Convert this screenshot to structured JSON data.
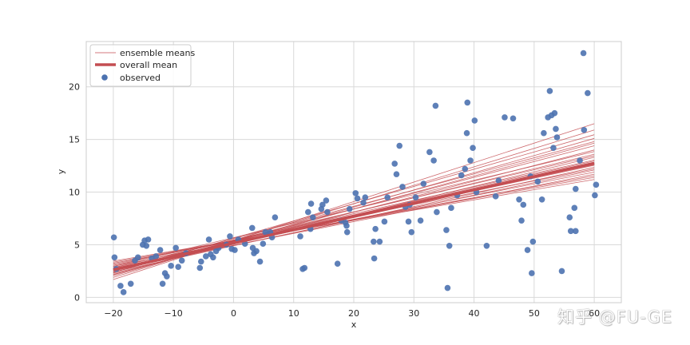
{
  "watermark": "知乎 @FU-GE",
  "chart_data": {
    "type": "scatter",
    "title": "",
    "xlabel": "x",
    "ylabel": "y",
    "xlim": [
      -24.5,
      64.5
    ],
    "ylim": [
      -0.5,
      24.3
    ],
    "xticks": [
      -20,
      -10,
      0,
      10,
      20,
      30,
      40,
      50,
      60
    ],
    "xtick_labels": [
      "−20",
      "−10",
      "0",
      "10",
      "20",
      "30",
      "40",
      "50",
      "60"
    ],
    "yticks": [
      0,
      5,
      10,
      15,
      20
    ],
    "ytick_labels": [
      "0",
      "5",
      "10",
      "15",
      "20"
    ],
    "grid": true,
    "legend": {
      "position": "top-left",
      "entries": [
        "ensemble means",
        "overall mean",
        "observed"
      ]
    },
    "colors": {
      "ensemble": "#c44e52",
      "mean": "#c44e52",
      "observed": "#4c72b0"
    },
    "observed": {
      "name": "observed",
      "points": [
        [
          -19.9,
          5.7
        ],
        [
          -19.8,
          3.8
        ],
        [
          -19.5,
          2.7
        ],
        [
          -18.8,
          1.1
        ],
        [
          -18.3,
          0.5
        ],
        [
          -17.1,
          1.3
        ],
        [
          -16.4,
          3.5
        ],
        [
          -15.9,
          3.8
        ],
        [
          -15.1,
          5.0
        ],
        [
          -14.8,
          5.4
        ],
        [
          -14.5,
          4.9
        ],
        [
          -14.2,
          5.5
        ],
        [
          -13.6,
          3.7
        ],
        [
          -12.9,
          3.9
        ],
        [
          -12.2,
          4.5
        ],
        [
          -11.8,
          1.3
        ],
        [
          -11.4,
          2.3
        ],
        [
          -11.1,
          2.0
        ],
        [
          -10.4,
          3.0
        ],
        [
          -9.6,
          4.7
        ],
        [
          -9.2,
          2.9
        ],
        [
          -8.6,
          3.5
        ],
        [
          -7.9,
          4.2
        ],
        [
          -5.6,
          2.8
        ],
        [
          -5.4,
          3.4
        ],
        [
          -4.6,
          3.9
        ],
        [
          -4.1,
          5.5
        ],
        [
          -3.8,
          4.1
        ],
        [
          -3.4,
          3.8
        ],
        [
          -2.9,
          4.4
        ],
        [
          -2.5,
          4.7
        ],
        [
          -1.2,
          5.0
        ],
        [
          -0.6,
          5.8
        ],
        [
          -0.3,
          4.6
        ],
        [
          0.2,
          4.5
        ],
        [
          0.8,
          5.5
        ],
        [
          1.9,
          5.1
        ],
        [
          3.1,
          6.6
        ],
        [
          3.2,
          4.7
        ],
        [
          3.4,
          4.2
        ],
        [
          3.8,
          4.4
        ],
        [
          4.4,
          3.4
        ],
        [
          4.9,
          5.1
        ],
        [
          5.3,
          6.2
        ],
        [
          6.1,
          6.2
        ],
        [
          6.4,
          5.7
        ],
        [
          6.9,
          7.6
        ],
        [
          11.1,
          5.8
        ],
        [
          11.5,
          2.7
        ],
        [
          11.8,
          2.8
        ],
        [
          12.4,
          8.1
        ],
        [
          12.8,
          6.5
        ],
        [
          12.9,
          8.9
        ],
        [
          13.2,
          7.6
        ],
        [
          14.6,
          8.4
        ],
        [
          14.8,
          8.8
        ],
        [
          15.4,
          9.2
        ],
        [
          15.6,
          8.1
        ],
        [
          17.3,
          3.2
        ],
        [
          17.9,
          7.3
        ],
        [
          18.6,
          7.1
        ],
        [
          18.8,
          6.8
        ],
        [
          18.9,
          6.2
        ],
        [
          19.3,
          8.4
        ],
        [
          20.3,
          9.9
        ],
        [
          20.6,
          9.4
        ],
        [
          21.6,
          9.0
        ],
        [
          21.9,
          9.5
        ],
        [
          23.3,
          5.3
        ],
        [
          23.4,
          3.7
        ],
        [
          23.6,
          6.5
        ],
        [
          24.3,
          5.3
        ],
        [
          25.1,
          7.2
        ],
        [
          25.6,
          9.5
        ],
        [
          26.8,
          12.7
        ],
        [
          27.1,
          11.7
        ],
        [
          27.6,
          14.4
        ],
        [
          28.1,
          10.5
        ],
        [
          28.6,
          8.6
        ],
        [
          29.1,
          7.2
        ],
        [
          29.3,
          8.8
        ],
        [
          29.6,
          6.2
        ],
        [
          30.3,
          9.5
        ],
        [
          31.1,
          7.3
        ],
        [
          31.6,
          10.8
        ],
        [
          32.6,
          13.8
        ],
        [
          33.3,
          13.0
        ],
        [
          33.6,
          18.2
        ],
        [
          33.8,
          8.1
        ],
        [
          35.4,
          6.4
        ],
        [
          35.6,
          0.9
        ],
        [
          35.9,
          4.9
        ],
        [
          36.2,
          8.5
        ],
        [
          37.2,
          9.7
        ],
        [
          37.9,
          11.6
        ],
        [
          38.5,
          12.2
        ],
        [
          38.8,
          15.6
        ],
        [
          38.9,
          18.5
        ],
        [
          39.4,
          13.0
        ],
        [
          39.8,
          14.2
        ],
        [
          40.1,
          16.8
        ],
        [
          40.4,
          10.0
        ],
        [
          42.1,
          4.9
        ],
        [
          43.6,
          9.6
        ],
        [
          44.1,
          11.1
        ],
        [
          45.1,
          17.1
        ],
        [
          46.5,
          17.0
        ],
        [
          47.5,
          9.3
        ],
        [
          47.9,
          7.3
        ],
        [
          48.2,
          8.8
        ],
        [
          48.9,
          4.5
        ],
        [
          49.4,
          11.5
        ],
        [
          49.6,
          2.3
        ],
        [
          49.8,
          5.3
        ],
        [
          50.6,
          11.0
        ],
        [
          51.3,
          9.3
        ],
        [
          51.6,
          15.6
        ],
        [
          52.3,
          17.1
        ],
        [
          52.6,
          19.6
        ],
        [
          52.9,
          17.3
        ],
        [
          53.2,
          14.2
        ],
        [
          53.4,
          17.5
        ],
        [
          53.6,
          16.0
        ],
        [
          53.8,
          15.2
        ],
        [
          54.6,
          2.5
        ],
        [
          55.9,
          7.6
        ],
        [
          56.1,
          6.3
        ],
        [
          56.7,
          8.5
        ],
        [
          56.9,
          6.3
        ],
        [
          56.9,
          10.3
        ],
        [
          57.6,
          13.0
        ],
        [
          58.2,
          23.2
        ],
        [
          58.3,
          15.9
        ],
        [
          58.9,
          19.4
        ],
        [
          60.1,
          9.7
        ],
        [
          60.3,
          10.7
        ]
      ]
    },
    "ensemble_lines": [
      [
        2.42,
        12.35
      ],
      [
        2.55,
        12.1
      ],
      [
        2.65,
        12.8
      ],
      [
        2.75,
        12.55
      ],
      [
        2.85,
        13.05
      ],
      [
        2.3,
        13.3
      ],
      [
        2.95,
        11.9
      ],
      [
        3.05,
        12.6
      ],
      [
        2.6,
        13.6
      ],
      [
        2.7,
        11.7
      ],
      [
        2.2,
        14.0
      ],
      [
        3.15,
        12.2
      ],
      [
        2.8,
        13.45
      ],
      [
        2.4,
        14.4
      ],
      [
        3.25,
        11.55
      ],
      [
        2.5,
        14.8
      ],
      [
        2.05,
        15.1
      ],
      [
        3.35,
        11.4
      ],
      [
        2.35,
        15.45
      ],
      [
        1.9,
        15.9
      ],
      [
        1.7,
        16.5
      ],
      [
        3.45,
        11.2
      ],
      [
        2.95,
        13.85
      ],
      [
        2.15,
        14.65
      ],
      [
        2.72,
        12.95
      ]
    ],
    "overall_mean": [
      2.62,
      12.75
    ],
    "line_x_range": [
      -20,
      60
    ]
  }
}
